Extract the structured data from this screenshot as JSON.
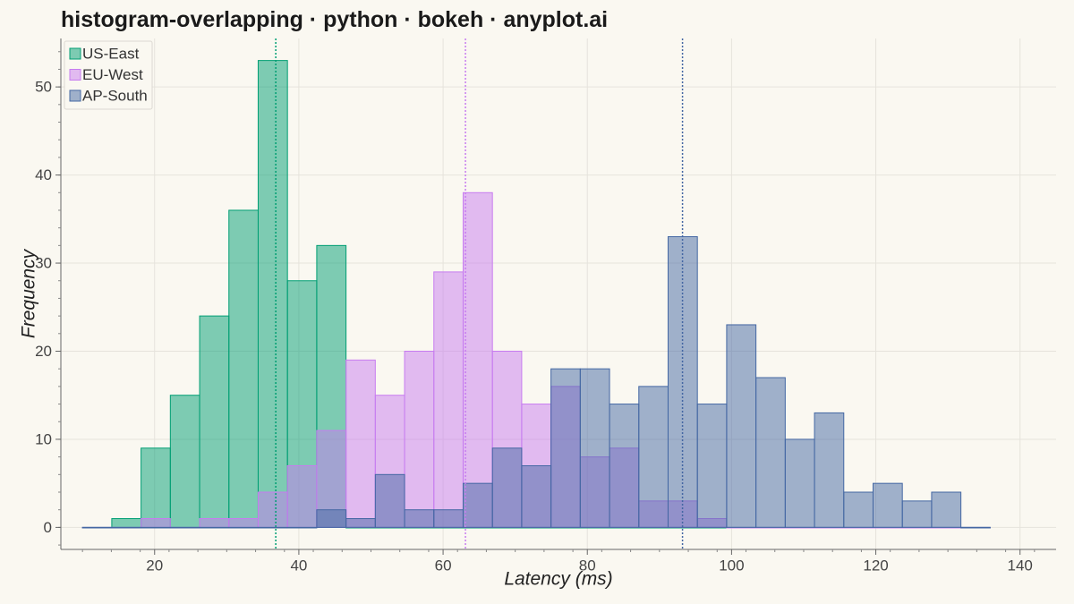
{
  "title": "histogram-overlapping · python · bokeh · anyplot.ai",
  "chart_data": {
    "type": "bar",
    "subtype": "overlapping-histogram",
    "xlabel": "Latency (ms)",
    "ylabel": "Frequency",
    "xlim": [
      7,
      145
    ],
    "ylim": [
      -2.5,
      55.5
    ],
    "x_ticks": [
      20,
      40,
      60,
      80,
      100,
      120,
      140
    ],
    "y_ticks": [
      0,
      10,
      20,
      30,
      40,
      50
    ],
    "grid": true,
    "legend_position": "top-left",
    "bin_edges": [
      10.0,
      14.06,
      18.12,
      22.18,
      26.24,
      30.3,
      34.36,
      38.42,
      42.48,
      46.54,
      50.6,
      54.66,
      58.72,
      62.78,
      66.84,
      70.9,
      74.96,
      79.02,
      83.08,
      87.14,
      91.2,
      95.26,
      99.32,
      103.38,
      107.44,
      111.5,
      115.56,
      119.62,
      123.68,
      127.74,
      131.8,
      135.86
    ],
    "series": [
      {
        "name": "US-East",
        "color": "#009E73",
        "mean": 36.8,
        "counts": [
          0,
          1,
          9,
          15,
          24,
          36,
          53,
          28,
          32,
          0,
          0,
          0,
          0,
          0,
          0,
          0,
          0,
          0,
          0,
          0,
          0,
          0,
          0,
          0,
          0,
          0,
          0,
          0,
          0,
          0,
          0
        ]
      },
      {
        "name": "EU-West",
        "color": "#C77CF0",
        "mean": 63.1,
        "counts": [
          0,
          0,
          1,
          0,
          1,
          1,
          4,
          7,
          11,
          19,
          15,
          20,
          29,
          38,
          20,
          14,
          16,
          8,
          9,
          3,
          3,
          1,
          0,
          0,
          0,
          0,
          0,
          0,
          0,
          0,
          0
        ]
      },
      {
        "name": "AP-South",
        "color": "#4467A3",
        "mean": 93.2,
        "counts": [
          0,
          0,
          0,
          0,
          0,
          0,
          0,
          0,
          2,
          1,
          6,
          2,
          2,
          5,
          9,
          7,
          18,
          18,
          14,
          16,
          33,
          14,
          23,
          17,
          10,
          13,
          4,
          5,
          3,
          4,
          0
        ]
      }
    ]
  }
}
